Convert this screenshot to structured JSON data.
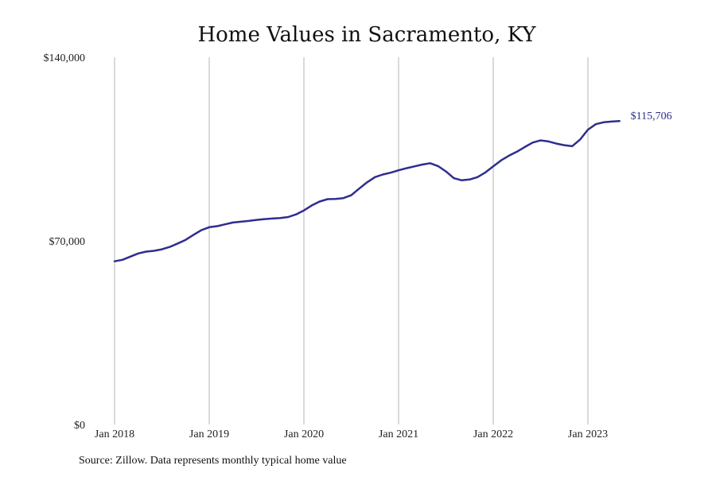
{
  "chart_data": {
    "type": "line",
    "title": "Home Values in Sacramento, KY",
    "xlabel": "",
    "ylabel": "",
    "x_tick_labels": [
      "Jan 2018",
      "Jan 2019",
      "Jan 2020",
      "Jan 2021",
      "Jan 2022",
      "Jan 2023"
    ],
    "y_tick_labels": [
      "$0",
      "$70,000",
      "$140,000"
    ],
    "y_ticks": [
      0,
      70000,
      140000
    ],
    "ylim": [
      0,
      140000
    ],
    "xlim": [
      "2018-01",
      "2023-12"
    ],
    "grid": "vertical lines at each January",
    "legend": "none",
    "line_color": "#2e2e8f",
    "end_label": "$115,706",
    "series": [
      {
        "x": [
          "2018-01",
          "2018-02",
          "2018-03",
          "2018-04",
          "2018-05",
          "2018-06",
          "2018-07",
          "2018-08",
          "2018-09",
          "2018-10",
          "2018-11",
          "2018-12",
          "2019-01",
          "2019-02",
          "2019-03",
          "2019-04",
          "2019-05",
          "2019-06",
          "2019-07",
          "2019-08",
          "2019-09",
          "2019-10",
          "2019-11",
          "2019-12",
          "2020-01",
          "2020-02",
          "2020-03",
          "2020-04",
          "2020-05",
          "2020-06",
          "2020-07",
          "2020-08",
          "2020-09",
          "2020-10",
          "2020-11",
          "2020-12",
          "2021-01",
          "2021-02",
          "2021-03",
          "2021-04",
          "2021-05",
          "2021-06",
          "2021-07",
          "2021-08",
          "2021-09",
          "2021-10",
          "2021-11",
          "2021-12",
          "2022-01",
          "2022-02",
          "2022-03",
          "2022-04",
          "2022-05",
          "2022-06",
          "2022-07",
          "2022-08",
          "2022-09",
          "2022-10",
          "2022-11",
          "2022-12",
          "2023-01",
          "2023-02",
          "2023-03",
          "2023-04",
          "2023-05"
        ],
        "y": [
          62200,
          62800,
          64000,
          65200,
          65900,
          66200,
          66800,
          67700,
          69000,
          70400,
          72300,
          74100,
          75200,
          75600,
          76300,
          77000,
          77300,
          77600,
          78000,
          78300,
          78500,
          78700,
          79100,
          80100,
          81600,
          83500,
          85000,
          85900,
          86000,
          86300,
          87400,
          89900,
          92300,
          94300,
          95300,
          96000,
          96900,
          97700,
          98400,
          99100,
          99600,
          98500,
          96500,
          93900,
          93100,
          93400,
          94300,
          96100,
          98400,
          100700,
          102500,
          104000,
          105800,
          107500,
          108300,
          107900,
          107100,
          106500,
          106100,
          108600,
          112400,
          114500,
          115200,
          115500,
          115706
        ]
      }
    ]
  },
  "source_text": "Source: Zillow. Data represents monthly typical home value"
}
